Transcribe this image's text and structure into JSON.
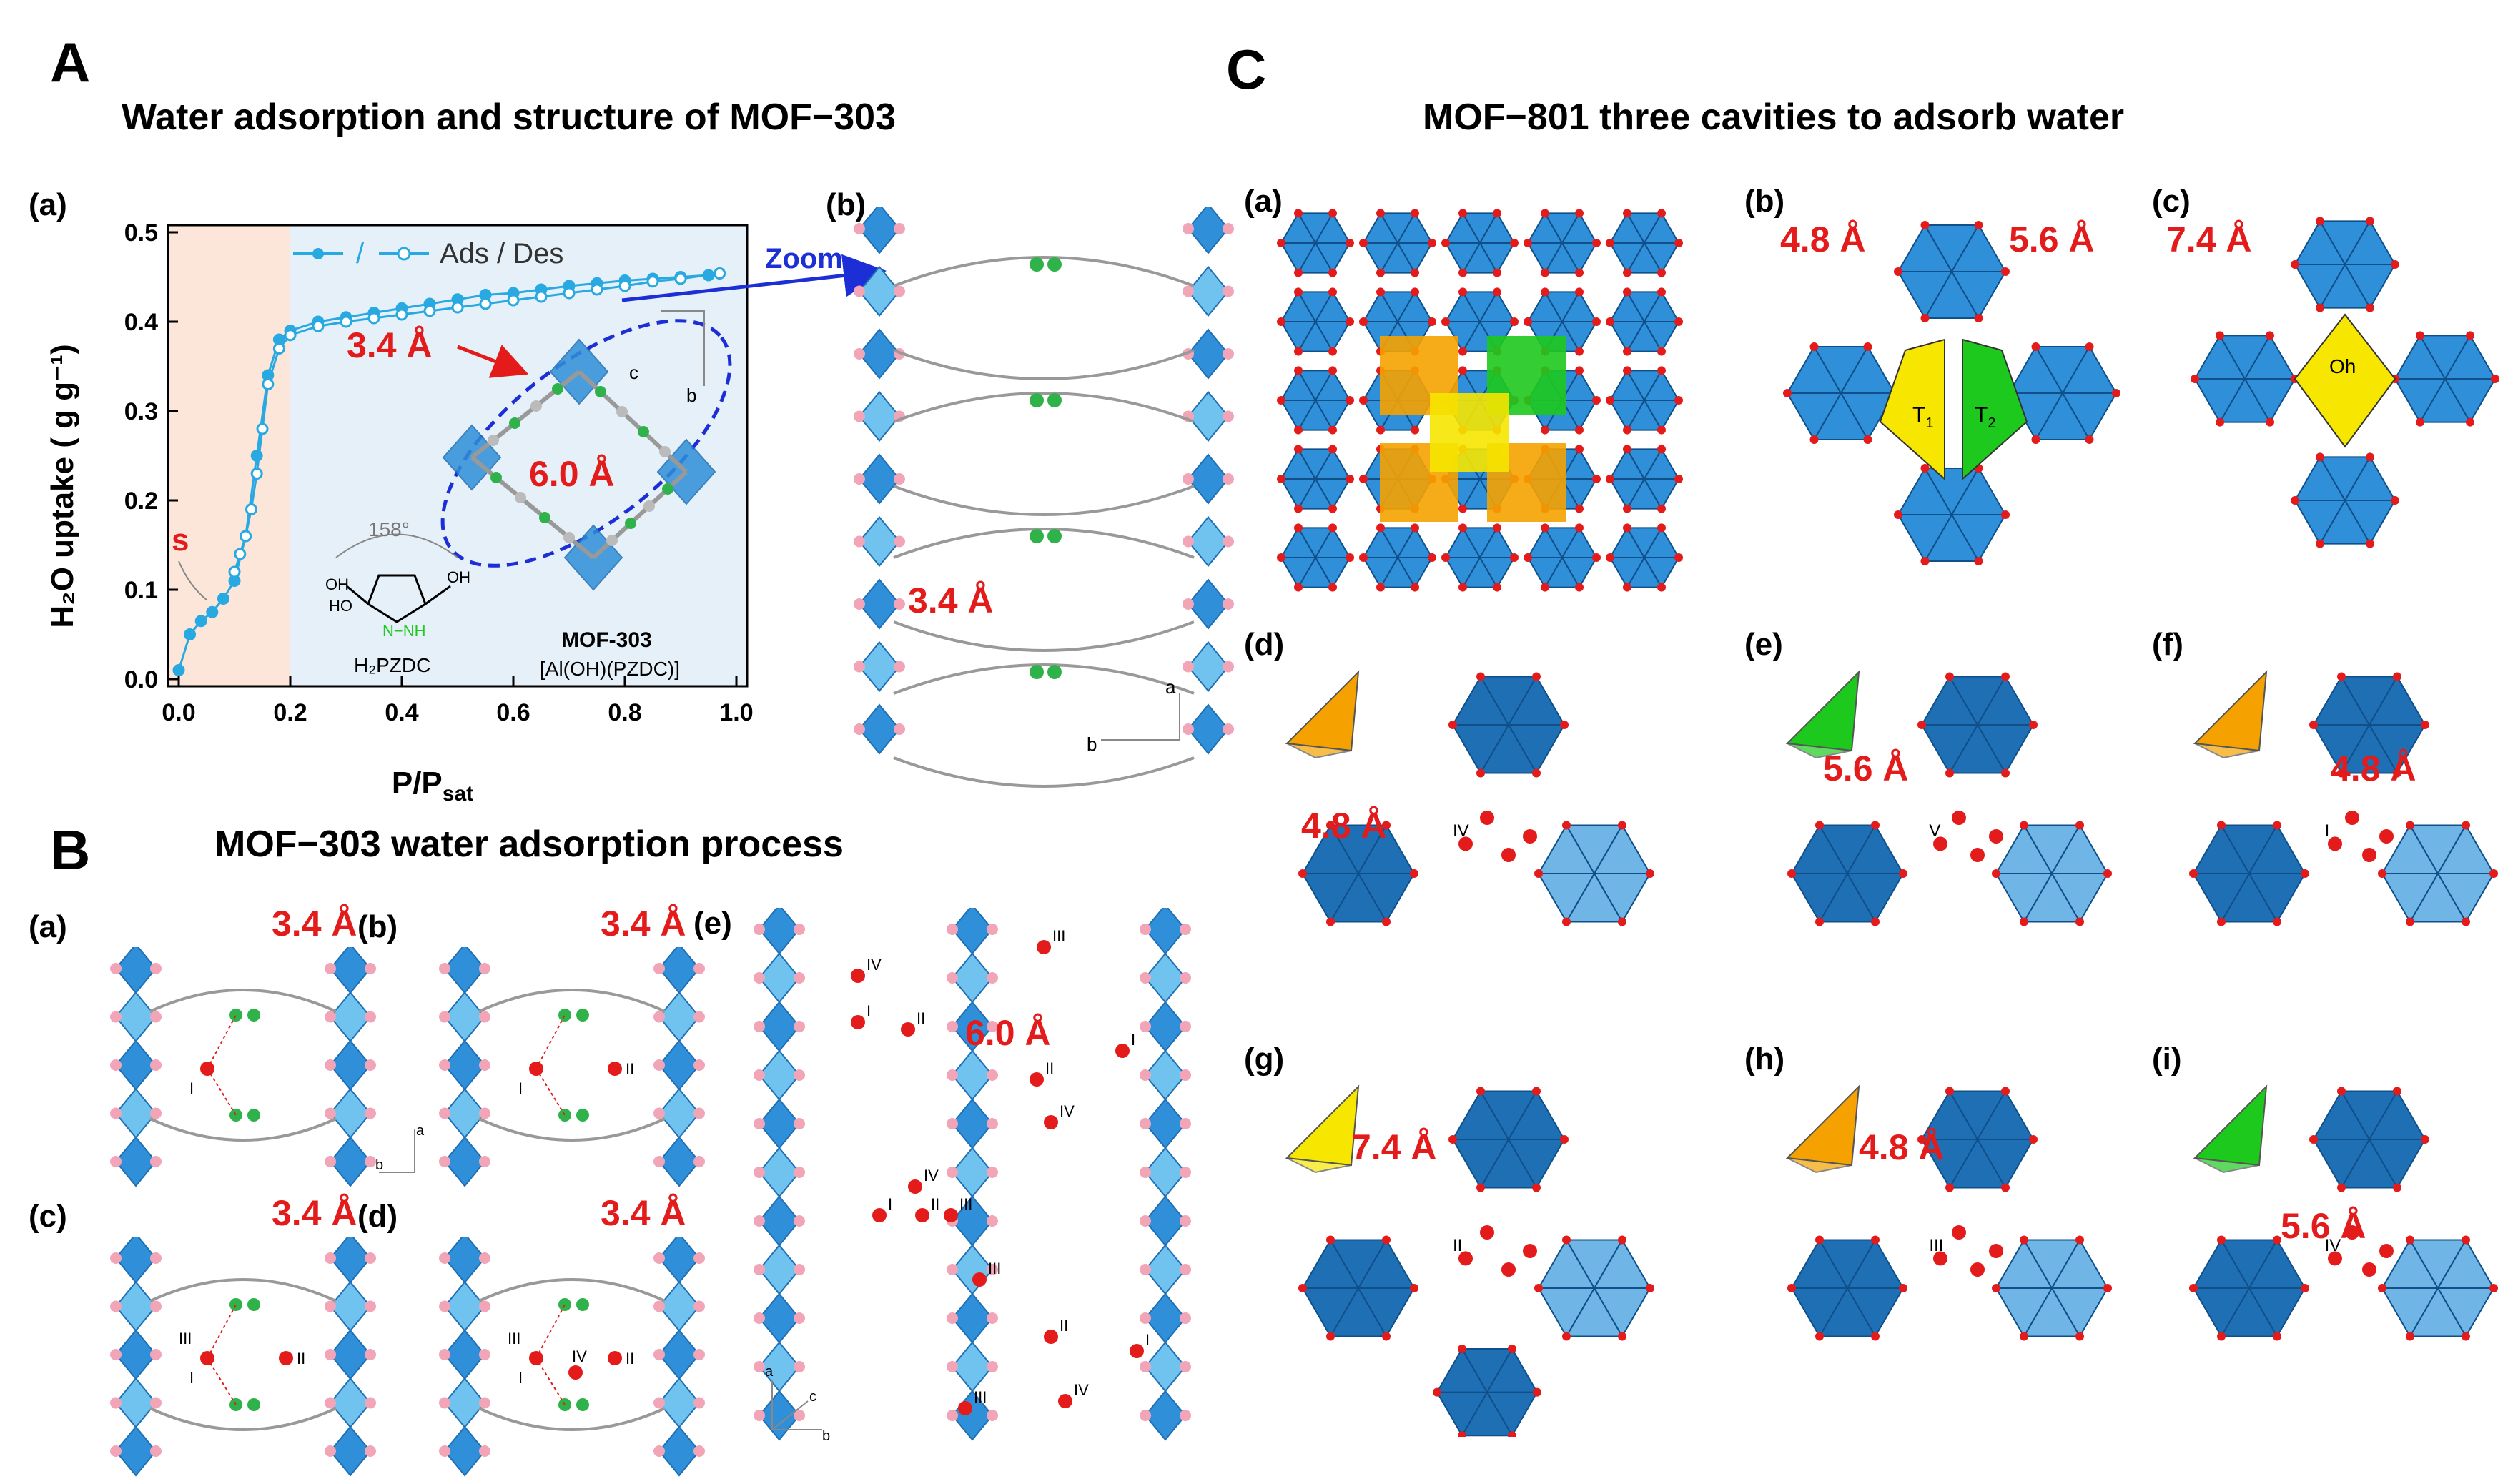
{
  "sectionA": {
    "letter": "A",
    "title": "Water adsorption and structure of MOF−303",
    "panel_a": "(a)",
    "panel_b": "(b)",
    "zoom": "Zoom",
    "label_34": "3.4 Å",
    "label_60": "6.0 Å",
    "label_34b": "3.4 Å",
    "s_label": "s",
    "angle": "158°",
    "linker_name": "H₂PZDC",
    "mof_name": "MOF-303",
    "mof_formula": "[Al(OH)(PZDC)]",
    "axis_c": "c",
    "axis_b": "b",
    "axis_a2": "a",
    "axis_b2": "b"
  },
  "chart_data": {
    "type": "line",
    "xlabel": "P/P",
    "xlabel_sub": "sat",
    "ylabel": "H₂O uptake ( g g⁻¹)",
    "xlim": [
      0.0,
      1.0
    ],
    "ylim": [
      0.0,
      0.5
    ],
    "xticks": [
      "0.0",
      "0.2",
      "0.4",
      "0.6",
      "0.8",
      "1.0"
    ],
    "yticks": [
      "0.0",
      "0.1",
      "0.2",
      "0.3",
      "0.4",
      "0.5"
    ],
    "legend": "Ads / Des",
    "legend_sep": "/",
    "series": [
      {
        "name": "Ads",
        "marker": "filled",
        "x": [
          0.0,
          0.02,
          0.04,
          0.06,
          0.08,
          0.1,
          0.12,
          0.14,
          0.16,
          0.18,
          0.2,
          0.25,
          0.3,
          0.35,
          0.4,
          0.45,
          0.5,
          0.55,
          0.6,
          0.65,
          0.7,
          0.75,
          0.8,
          0.85,
          0.9,
          0.95,
          0.97
        ],
        "y": [
          0.01,
          0.05,
          0.065,
          0.075,
          0.09,
          0.11,
          0.16,
          0.25,
          0.34,
          0.38,
          0.39,
          0.4,
          0.405,
          0.41,
          0.415,
          0.42,
          0.425,
          0.43,
          0.432,
          0.436,
          0.44,
          0.443,
          0.446,
          0.448,
          0.45,
          0.452,
          0.454
        ]
      },
      {
        "name": "Des",
        "marker": "open",
        "x": [
          0.97,
          0.9,
          0.85,
          0.8,
          0.75,
          0.7,
          0.65,
          0.6,
          0.55,
          0.5,
          0.45,
          0.4,
          0.35,
          0.3,
          0.25,
          0.2,
          0.18,
          0.16,
          0.15,
          0.14,
          0.13,
          0.12,
          0.11,
          0.1
        ],
        "y": [
          0.454,
          0.448,
          0.445,
          0.44,
          0.436,
          0.432,
          0.428,
          0.424,
          0.42,
          0.416,
          0.412,
          0.408,
          0.404,
          0.4,
          0.395,
          0.385,
          0.37,
          0.33,
          0.28,
          0.23,
          0.19,
          0.16,
          0.14,
          0.12
        ]
      }
    ],
    "bg_regions": [
      {
        "x0": 0.0,
        "x1": 0.2,
        "color": "#fbe6d9"
      },
      {
        "x0": 0.2,
        "x1": 1.0,
        "color": "#e6f0f8"
      }
    ]
  },
  "sectionB": {
    "letter": "B",
    "title": "MOF−303 water adsorption process",
    "panels": [
      {
        "label": "(a)",
        "dist": "3.4 Å"
      },
      {
        "label": "(b)",
        "dist": "3.4 Å"
      },
      {
        "label": "(c)",
        "dist": "3.4 Å"
      },
      {
        "label": "(d)",
        "dist": "3.4 Å"
      }
    ],
    "panel_e": "(e)",
    "e_dist": "6.0 Å",
    "roman": [
      "I",
      "II",
      "III",
      "IV"
    ],
    "axis_a": "a",
    "axis_b": "b",
    "axis_c": "c"
  },
  "sectionC": {
    "letter": "C",
    "title": "MOF−801 three cavities to adsorb water",
    "panels": [
      {
        "label": "(a)"
      },
      {
        "label": "(b)",
        "dists": [
          "4.8 Å",
          "5.6 Å"
        ],
        "t1": "T",
        "t1_sub": "1",
        "t2": "T",
        "t2_sub": "2"
      },
      {
        "label": "(c)",
        "dists": [
          "7.4 Å"
        ],
        "oh": "Oh"
      },
      {
        "label": "(d)",
        "dist": "4.8 Å"
      },
      {
        "label": "(e)",
        "dist": "5.6 Å"
      },
      {
        "label": "(f)",
        "dist": "4.8 Å"
      },
      {
        "label": "(g)",
        "dist": "7.4 Å"
      },
      {
        "label": "(h)",
        "dist": "4.8 Å"
      },
      {
        "label": "(i)",
        "dist": "5.6 Å"
      }
    ],
    "roman": [
      "I",
      "II",
      "III",
      "IV",
      "V"
    ]
  },
  "colors": {
    "red": "#e31b1b",
    "blue_poly": "#2f8fd8",
    "dark_blue": "#1f6fb5",
    "cyan_line": "#29a9e1",
    "zoom_blue": "#1c2fd6",
    "orange": "#f5a200",
    "green": "#1ec91e",
    "yellow": "#f6e600",
    "pink_atom": "#f3a5b8"
  }
}
